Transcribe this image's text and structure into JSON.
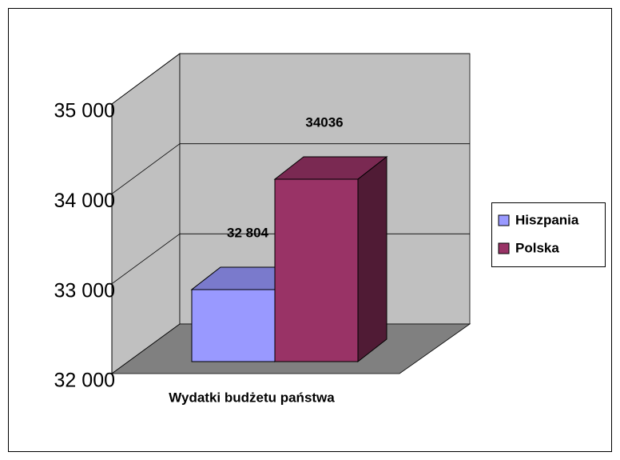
{
  "chart_data": {
    "type": "bar3d",
    "categories": [
      "Wydatki budżetu państwa"
    ],
    "series": [
      {
        "name": "Hiszpania",
        "color": "#9999ff",
        "values": [
          32804
        ],
        "value_labels": [
          "32 804"
        ]
      },
      {
        "name": "Polska",
        "color": "#993366",
        "values": [
          34036
        ],
        "value_labels": [
          "34036"
        ]
      }
    ],
    "ylim": [
      32000,
      35000
    ],
    "yticks": [
      {
        "value": 32000,
        "label": "32 000"
      },
      {
        "value": 33000,
        "label": "33 000"
      },
      {
        "value": 34000,
        "label": "34 000"
      },
      {
        "value": 35000,
        "label": "35 000"
      }
    ],
    "grid": true,
    "legend": "right"
  }
}
